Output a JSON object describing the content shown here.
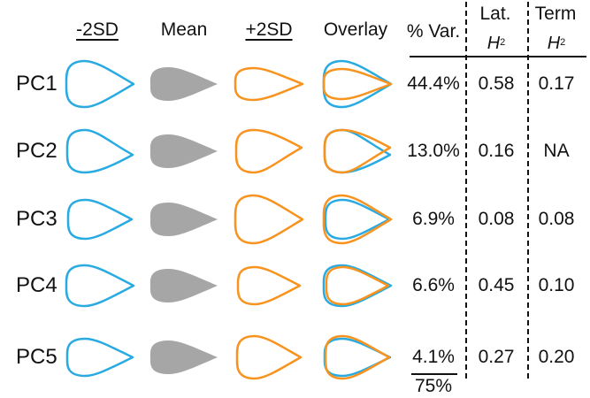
{
  "headers": {
    "minus2sd": "-2SD",
    "mean": "Mean",
    "plus2sd": "+2SD",
    "overlay": "Overlay",
    "pct_var": "% Var.",
    "lat": "Lat.",
    "term": "Term",
    "h2_symbol": "H",
    "h2_sup": "2"
  },
  "rows": [
    {
      "pc": "PC1",
      "pct_var": "44.4%",
      "lat_h2": "0.58",
      "term_h2": "0.17"
    },
    {
      "pc": "PC2",
      "pct_var": "13.0%",
      "lat_h2": "0.16",
      "term_h2": "NA"
    },
    {
      "pc": "PC3",
      "pct_var": "6.9%",
      "lat_h2": "0.08",
      "term_h2": "0.08"
    },
    {
      "pc": "PC4",
      "pct_var": "6.6%",
      "lat_h2": "0.45",
      "term_h2": "0.10"
    },
    {
      "pc": "PC5",
      "pct_var": "4.1%",
      "lat_h2": "0.27",
      "term_h2": "0.20"
    }
  ],
  "total_var": "75%",
  "colors": {
    "minus": "#29abe2",
    "mean": "#a6a6a6",
    "plus": "#f7931e",
    "text": "#111111"
  }
}
